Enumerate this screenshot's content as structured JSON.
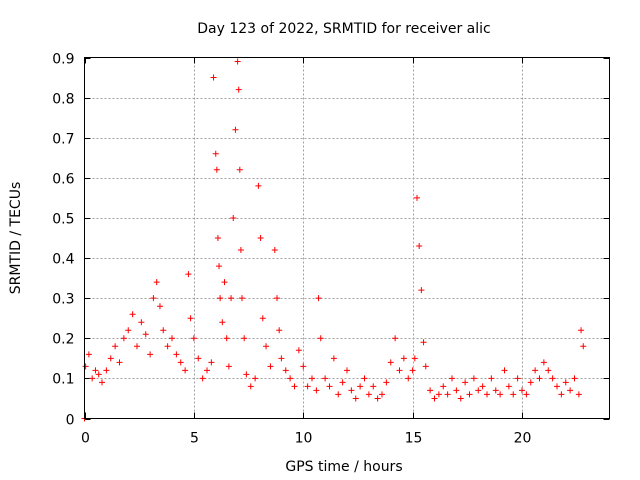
{
  "chart_data": {
    "type": "scatter",
    "title": "Day 123 of 2022, SRMTID for receiver alic",
    "xlabel": "GPS time / hours",
    "ylabel": "SRMTID / TECUs",
    "xlim": [
      0,
      24
    ],
    "ylim": [
      0,
      0.9
    ],
    "xticks": [
      0,
      5,
      10,
      15,
      20
    ],
    "yticks": [
      0,
      0.1,
      0.2,
      0.3,
      0.4,
      0.5,
      0.6,
      0.7,
      0.8,
      0.9
    ],
    "xtick_labels": [
      "0",
      "5",
      "10",
      "15",
      "20"
    ],
    "ytick_labels": [
      "0",
      "0.1",
      "0.2",
      "0.3",
      "0.4",
      "0.5",
      "0.6",
      "0.7",
      "0.8",
      "0.9"
    ],
    "grid": true,
    "marker": "+",
    "color": "#ff0000",
    "series": [
      {
        "name": "SRMTID",
        "x": [
          0.0,
          0.05,
          0.2,
          0.35,
          0.5,
          0.65,
          0.8,
          1.0,
          1.2,
          1.4,
          1.6,
          1.8,
          2.0,
          2.2,
          2.4,
          2.6,
          2.8,
          3.0,
          3.15,
          3.3,
          3.45,
          3.6,
          3.8,
          4.0,
          4.2,
          4.4,
          4.6,
          4.75,
          4.85,
          5.0,
          5.2,
          5.4,
          5.6,
          5.8,
          5.9,
          6.0,
          6.05,
          6.1,
          6.15,
          6.2,
          6.3,
          6.4,
          6.5,
          6.6,
          6.7,
          6.8,
          6.9,
          7.0,
          7.05,
          7.1,
          7.15,
          7.2,
          7.3,
          7.4,
          7.6,
          7.8,
          7.95,
          8.05,
          8.15,
          8.3,
          8.5,
          8.7,
          8.8,
          8.9,
          9.0,
          9.2,
          9.4,
          9.6,
          9.8,
          10.0,
          10.2,
          10.4,
          10.6,
          10.7,
          10.8,
          11.0,
          11.2,
          11.4,
          11.6,
          11.8,
          12.0,
          12.2,
          12.4,
          12.6,
          12.8,
          13.0,
          13.2,
          13.4,
          13.6,
          13.8,
          14.0,
          14.2,
          14.4,
          14.6,
          14.8,
          15.0,
          15.1,
          15.2,
          15.3,
          15.4,
          15.5,
          15.6,
          15.8,
          16.0,
          16.2,
          16.4,
          16.6,
          16.8,
          17.0,
          17.2,
          17.4,
          17.6,
          17.8,
          18.0,
          18.2,
          18.4,
          18.6,
          18.8,
          19.0,
          19.2,
          19.4,
          19.6,
          19.8,
          20.0,
          20.2,
          20.4,
          20.6,
          20.8,
          21.0,
          21.2,
          21.4,
          21.6,
          21.8,
          22.0,
          22.2,
          22.4,
          22.6,
          22.7,
          22.8
        ],
        "y": [
          0.0,
          0.13,
          0.16,
          0.1,
          0.12,
          0.11,
          0.09,
          0.12,
          0.15,
          0.18,
          0.14,
          0.2,
          0.22,
          0.26,
          0.18,
          0.24,
          0.21,
          0.16,
          0.3,
          0.34,
          0.28,
          0.22,
          0.18,
          0.2,
          0.16,
          0.14,
          0.12,
          0.36,
          0.25,
          0.2,
          0.15,
          0.1,
          0.12,
          0.14,
          0.85,
          0.66,
          0.62,
          0.45,
          0.38,
          0.3,
          0.24,
          0.34,
          0.2,
          0.13,
          0.3,
          0.5,
          0.72,
          0.89,
          0.82,
          0.62,
          0.42,
          0.3,
          0.2,
          0.11,
          0.08,
          0.1,
          0.58,
          0.45,
          0.25,
          0.18,
          0.13,
          0.42,
          0.3,
          0.22,
          0.15,
          0.12,
          0.1,
          0.08,
          0.17,
          0.13,
          0.08,
          0.1,
          0.07,
          0.3,
          0.2,
          0.1,
          0.08,
          0.15,
          0.06,
          0.09,
          0.12,
          0.07,
          0.05,
          0.08,
          0.1,
          0.06,
          0.08,
          0.05,
          0.06,
          0.09,
          0.14,
          0.2,
          0.12,
          0.15,
          0.1,
          0.12,
          0.15,
          0.55,
          0.43,
          0.32,
          0.19,
          0.13,
          0.07,
          0.05,
          0.06,
          0.08,
          0.06,
          0.1,
          0.07,
          0.05,
          0.09,
          0.06,
          0.1,
          0.07,
          0.08,
          0.06,
          0.1,
          0.07,
          0.06,
          0.12,
          0.08,
          0.06,
          0.1,
          0.07,
          0.06,
          0.09,
          0.12,
          0.1,
          0.14,
          0.12,
          0.1,
          0.08,
          0.06,
          0.09,
          0.07,
          0.1,
          0.06,
          0.22,
          0.18
        ]
      }
    ]
  }
}
